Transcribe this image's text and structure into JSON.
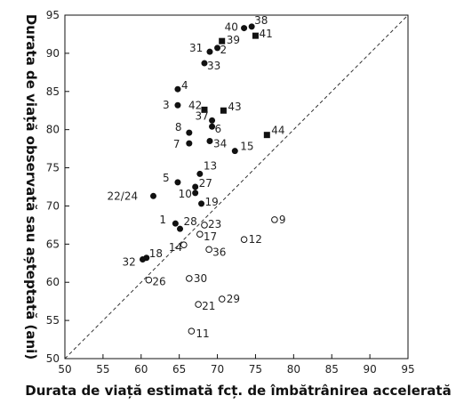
{
  "chart_data": {
    "type": "scatter",
    "title": "",
    "xlabel": "Durata de viață estimată fcț. de îmbătrânirea accelerată",
    "ylabel": "Durata de viață observată sau așteptată (ani)",
    "xlim": [
      50,
      95
    ],
    "ylim": [
      50,
      95
    ],
    "xticks": [
      "50",
      "55",
      "60",
      "65",
      "70",
      "75",
      "80",
      "85",
      "90",
      "95"
    ],
    "yticks": [
      "50",
      "55",
      "60",
      "65",
      "70",
      "75",
      "80",
      "85",
      "90",
      "95"
    ],
    "grid": false,
    "reference_line": {
      "style": "dashed",
      "from": [
        50,
        50
      ],
      "to": [
        95,
        95
      ]
    },
    "points": [
      {
        "label": "40",
        "x": 73.5,
        "y": 93.3,
        "marker": "filled-circle"
      },
      {
        "label": "38",
        "x": 74.5,
        "y": 93.5,
        "marker": "filled-circle"
      },
      {
        "label": "41",
        "x": 75.0,
        "y": 92.3,
        "marker": "filled-square"
      },
      {
        "label": "39",
        "x": 70.6,
        "y": 91.6,
        "marker": "filled-square"
      },
      {
        "label": "31",
        "x": 69.0,
        "y": 90.2,
        "marker": "filled-circle"
      },
      {
        "label": "2",
        "x": 70.0,
        "y": 90.7,
        "marker": "filled-circle"
      },
      {
        "label": "33",
        "x": 68.3,
        "y": 88.7,
        "marker": "filled-circle"
      },
      {
        "label": "4",
        "x": 64.8,
        "y": 85.3,
        "marker": "filled-circle"
      },
      {
        "label": "3",
        "x": 64.8,
        "y": 83.2,
        "marker": "filled-circle"
      },
      {
        "label": "42",
        "x": 68.3,
        "y": 82.6,
        "marker": "filled-square"
      },
      {
        "label": "43",
        "x": 70.8,
        "y": 82.5,
        "marker": "filled-square"
      },
      {
        "label": "37",
        "x": 69.3,
        "y": 81.2,
        "marker": "filled-circle"
      },
      {
        "label": "6",
        "x": 69.3,
        "y": 80.4,
        "marker": "filled-circle"
      },
      {
        "label": "8",
        "x": 66.3,
        "y": 79.6,
        "marker": "filled-circle"
      },
      {
        "label": "7",
        "x": 66.3,
        "y": 78.2,
        "marker": "filled-circle"
      },
      {
        "label": "34",
        "x": 69.0,
        "y": 78.5,
        "marker": "filled-circle"
      },
      {
        "label": "15",
        "x": 72.3,
        "y": 77.2,
        "marker": "filled-circle"
      },
      {
        "label": "44",
        "x": 76.5,
        "y": 79.3,
        "marker": "filled-square"
      },
      {
        "label": "13",
        "x": 67.7,
        "y": 74.2,
        "marker": "filled-circle"
      },
      {
        "label": "5",
        "x": 64.8,
        "y": 73.1,
        "marker": "filled-circle"
      },
      {
        "label": "27",
        "x": 67.1,
        "y": 72.5,
        "marker": "filled-circle"
      },
      {
        "label": "22/24",
        "x": 61.6,
        "y": 71.3,
        "marker": "filled-circle"
      },
      {
        "label": "10",
        "x": 67.1,
        "y": 71.7,
        "marker": "filled-circle"
      },
      {
        "label": "19",
        "x": 67.9,
        "y": 70.3,
        "marker": "filled-circle"
      },
      {
        "label": "1",
        "x": 64.5,
        "y": 67.7,
        "marker": "filled-circle"
      },
      {
        "label": "28",
        "x": 65.1,
        "y": 67.0,
        "marker": "filled-circle"
      },
      {
        "label": "23",
        "x": 68.3,
        "y": 67.5,
        "marker": "open-circle"
      },
      {
        "label": "9",
        "x": 77.5,
        "y": 68.2,
        "marker": "open-circle"
      },
      {
        "label": "17",
        "x": 67.7,
        "y": 66.3,
        "marker": "open-circle"
      },
      {
        "label": "12",
        "x": 73.5,
        "y": 65.6,
        "marker": "open-circle"
      },
      {
        "label": "14",
        "x": 65.6,
        "y": 64.9,
        "marker": "open-circle"
      },
      {
        "label": "36",
        "x": 68.9,
        "y": 64.3,
        "marker": "open-circle"
      },
      {
        "label": "18",
        "x": 60.7,
        "y": 63.2,
        "marker": "filled-circle"
      },
      {
        "label": "32",
        "x": 60.2,
        "y": 63.0,
        "marker": "filled-circle"
      },
      {
        "label": "26",
        "x": 61.0,
        "y": 60.3,
        "marker": "open-circle"
      },
      {
        "label": "30",
        "x": 66.3,
        "y": 60.5,
        "marker": "open-circle"
      },
      {
        "label": "29",
        "x": 70.6,
        "y": 57.8,
        "marker": "open-circle"
      },
      {
        "label": "21",
        "x": 67.5,
        "y": 57.1,
        "marker": "open-circle"
      },
      {
        "label": "11",
        "x": 66.6,
        "y": 53.6,
        "marker": "open-circle"
      }
    ]
  }
}
